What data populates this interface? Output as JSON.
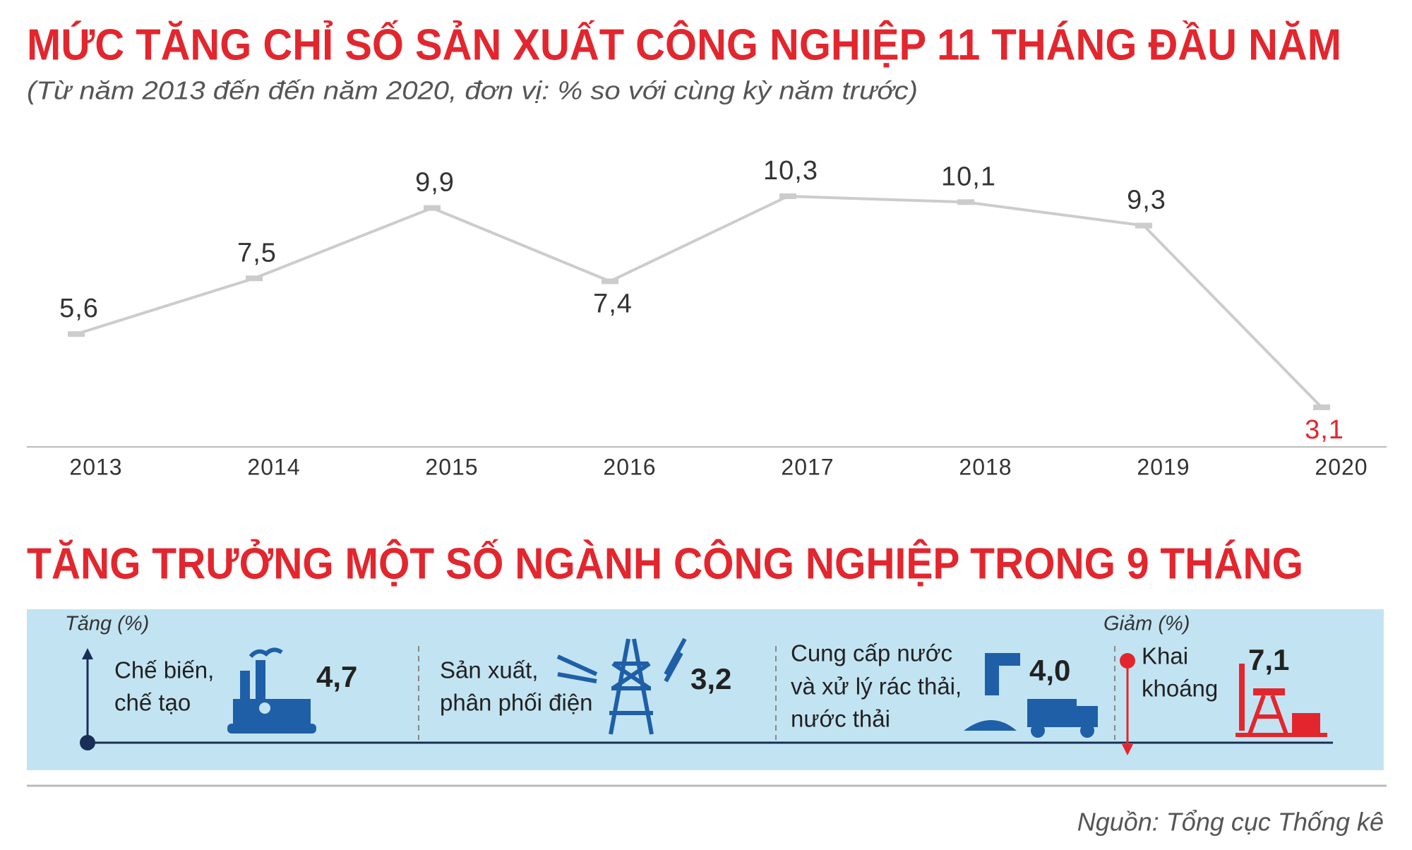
{
  "chart_data": {
    "type": "line",
    "title": "MỨC TĂNG CHỈ SỐ SẢN XUẤT CÔNG NGHIỆP 11 THÁNG ĐẦU NĂM",
    "subtitle": "(Từ năm 2013 đến đến năm 2020, đơn vị: % so với cùng kỳ năm trước)",
    "categories": [
      "2013",
      "2014",
      "2015",
      "2016",
      "2017",
      "2018",
      "2019",
      "2020"
    ],
    "values": [
      5.6,
      7.5,
      9.9,
      7.4,
      10.3,
      10.1,
      9.3,
      3.1
    ],
    "value_labels": [
      "5,6",
      "7,5",
      "9,9",
      "7,4",
      "10,3",
      "10,1",
      "9,3",
      "3,1"
    ],
    "value_label_colors": [
      "#333333",
      "#333333",
      "#333333",
      "#333333",
      "#333333",
      "#333333",
      "#333333",
      "#e3262e"
    ],
    "color": "#cccccc"
  },
  "industries": {
    "title": "TĂNG TRƯỞNG MỘT SỐ NGÀNH CÔNG NGHIỆP TRONG 9 THÁNG",
    "increase_label": "Tăng (%)",
    "decrease_label": "Giảm (%)",
    "items": [
      {
        "name_lines": [
          "Chế biến,",
          "chế tạo"
        ],
        "value": "4,7"
      },
      {
        "name_lines": [
          "Sản xuất,",
          "phân phối điện"
        ],
        "value": "3,2"
      },
      {
        "name_lines": [
          "Cung cấp nước",
          "và xử lý rác thải,",
          "nước thải"
        ],
        "value": "4,0"
      },
      {
        "name_lines": [
          "Khai",
          "khoáng"
        ],
        "value": "7,1"
      }
    ]
  },
  "source": "Nguồn: Tổng cục Thống kê"
}
